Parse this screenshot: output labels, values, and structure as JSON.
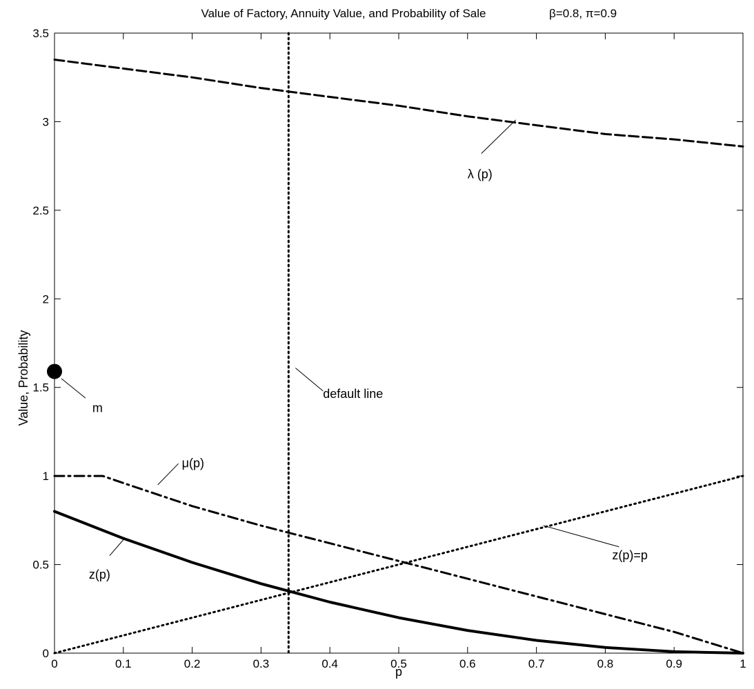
{
  "chart_data": {
    "type": "line",
    "title": "Value of Factory, Annuity Value, and Probability of Sale",
    "title_params": "β=0.8, π=0.9",
    "xlabel": "p",
    "ylabel": "Value, Probability",
    "xlim": [
      0,
      1
    ],
    "ylim": [
      0,
      3.5
    ],
    "xticks": [
      0,
      0.1,
      0.2,
      0.3,
      0.4,
      0.5,
      0.6,
      0.7,
      0.8,
      0.9,
      1
    ],
    "xtick_labels": [
      "0",
      "0.1",
      "0.2",
      "0.3",
      "0.4",
      "0.5",
      "0.6",
      "0.7",
      "0.8",
      "0.9",
      "1"
    ],
    "yticks": [
      0,
      0.5,
      1,
      1.5,
      2,
      2.5,
      3,
      3.5
    ],
    "ytick_labels": [
      "0",
      "0.5",
      "1",
      "1.5",
      "2",
      "2.5",
      "3",
      "3.5"
    ],
    "grid": false,
    "series": [
      {
        "name": "λ (p)",
        "style": "dashed",
        "x": [
          0,
          0.1,
          0.2,
          0.3,
          0.4,
          0.5,
          0.6,
          0.7,
          0.8,
          0.9,
          1
        ],
        "y": [
          3.35,
          3.3,
          3.25,
          3.19,
          3.14,
          3.09,
          3.03,
          2.98,
          2.93,
          2.9,
          2.86
        ]
      },
      {
        "name": "μ(p)",
        "style": "dashdot",
        "x": [
          0,
          0.07,
          0.1,
          0.2,
          0.3,
          0.4,
          0.5,
          0.6,
          0.7,
          0.8,
          0.9,
          1
        ],
        "y": [
          1.0,
          1.0,
          0.96,
          0.83,
          0.72,
          0.62,
          0.52,
          0.42,
          0.32,
          0.22,
          0.12,
          0
        ]
      },
      {
        "name": "z(p)",
        "style": "solid",
        "x": [
          0,
          0.1,
          0.2,
          0.3,
          0.4,
          0.5,
          0.6,
          0.7,
          0.8,
          0.9,
          1
        ],
        "y": [
          0.8,
          0.648,
          0.512,
          0.392,
          0.288,
          0.2,
          0.128,
          0.072,
          0.032,
          0.008,
          0
        ]
      },
      {
        "name": "z(p)=p",
        "style": "dotted",
        "x": [
          0,
          1
        ],
        "y": [
          0,
          1
        ]
      }
    ],
    "vline": {
      "name": "default line",
      "x": 0.34,
      "style": "dotted"
    },
    "point": {
      "name": "m",
      "x": 0,
      "y": 1.59
    },
    "annotations": [
      {
        "text": "λ (p)",
        "from": [
          0.67,
          3.01
        ],
        "to": [
          0.62,
          2.82
        ],
        "at": [
          0.6,
          2.68
        ]
      },
      {
        "text": "default line",
        "from": [
          0.35,
          1.61
        ],
        "to": [
          0.39,
          1.48
        ],
        "at": [
          0.39,
          1.44
        ]
      },
      {
        "text": "m",
        "from": [
          0.01,
          1.55
        ],
        "to": [
          0.045,
          1.44
        ],
        "at": [
          0.055,
          1.36
        ]
      },
      {
        "text": "μ(p)",
        "from": [
          0.15,
          0.95
        ],
        "to": [
          0.18,
          1.07
        ],
        "at": [
          0.185,
          1.05
        ]
      },
      {
        "text": "z(p)=p",
        "from": [
          0.71,
          0.72
        ],
        "to": [
          0.82,
          0.6
        ],
        "at": [
          0.81,
          0.53
        ]
      },
      {
        "text": "z(p)",
        "from": [
          0.1,
          0.64
        ],
        "to": [
          0.08,
          0.55
        ],
        "at": [
          0.05,
          0.42
        ]
      }
    ]
  }
}
